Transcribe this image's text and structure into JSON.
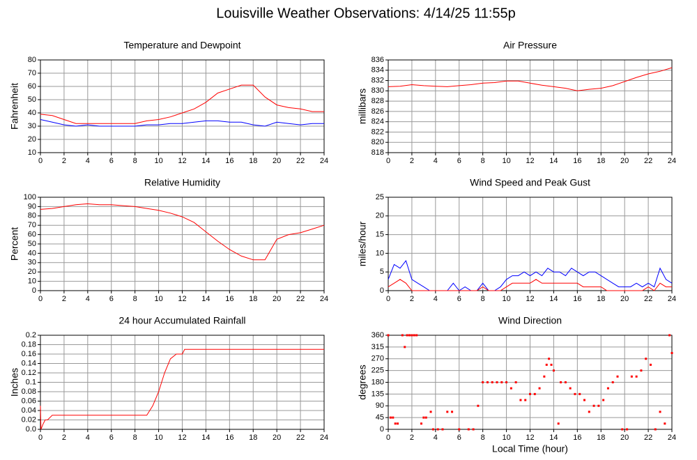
{
  "title": "Louisville Weather Observations: 4/14/25 11:55p",
  "chart_data": [
    {
      "type": "line",
      "title": "Temperature and Dewpoint",
      "ylabel": "Fahrenheit",
      "x": [
        0,
        1,
        2,
        3,
        4,
        5,
        6,
        7,
        8,
        9,
        10,
        11,
        12,
        13,
        14,
        15,
        16,
        17,
        18,
        19,
        20,
        21,
        22,
        23,
        24
      ],
      "series": [
        {
          "color": "#ff0000",
          "values": [
            39,
            38,
            35,
            32,
            32,
            32,
            32,
            32,
            32,
            34,
            35,
            37,
            40,
            43,
            48,
            55,
            58,
            61,
            61,
            52,
            46,
            44,
            43,
            41,
            41
          ]
        },
        {
          "color": "#0000ff",
          "values": [
            35,
            33,
            31,
            30,
            31,
            30,
            30,
            30,
            30,
            31,
            31,
            32,
            32,
            33,
            34,
            34,
            33,
            33,
            31,
            30,
            33,
            32,
            31,
            32,
            32
          ]
        }
      ],
      "xlim": [
        0,
        24
      ],
      "xticks": [
        0,
        2,
        4,
        6,
        8,
        10,
        12,
        14,
        16,
        18,
        20,
        22,
        24
      ],
      "ylim": [
        10,
        80
      ],
      "yticks": [
        10,
        20,
        30,
        40,
        50,
        60,
        70,
        80
      ],
      "grid": true
    },
    {
      "type": "line",
      "title": "Air Pressure",
      "ylabel": "millibars",
      "x": [
        0,
        1,
        2,
        3,
        4,
        5,
        6,
        7,
        8,
        9,
        10,
        11,
        12,
        13,
        14,
        15,
        16,
        17,
        18,
        19,
        20,
        21,
        22,
        23,
        24
      ],
      "series": [
        {
          "color": "#ff0000",
          "values": [
            830.8,
            830.9,
            831.2,
            831,
            830.9,
            830.8,
            831,
            831.2,
            831.5,
            831.6,
            831.9,
            831.9,
            831.5,
            831.1,
            830.8,
            830.5,
            830,
            830.3,
            830.5,
            831,
            831.8,
            832.6,
            833.3,
            833.8,
            834.5
          ]
        }
      ],
      "xlim": [
        0,
        24
      ],
      "xticks": [
        0,
        2,
        4,
        6,
        8,
        10,
        12,
        14,
        16,
        18,
        20,
        22,
        24
      ],
      "ylim": [
        818,
        836
      ],
      "yticks": [
        818,
        820,
        822,
        824,
        826,
        828,
        830,
        832,
        834,
        836
      ],
      "grid": true
    },
    {
      "type": "line",
      "title": "Relative Humidity",
      "ylabel": "Percent",
      "x": [
        0,
        1,
        2,
        3,
        4,
        5,
        6,
        7,
        8,
        9,
        10,
        11,
        12,
        13,
        14,
        15,
        16,
        17,
        18,
        19,
        20,
        21,
        22,
        23,
        24
      ],
      "series": [
        {
          "color": "#ff0000",
          "values": [
            87,
            88,
            90,
            92,
            93,
            92,
            92,
            91,
            90,
            88,
            86,
            83,
            79,
            73,
            63,
            53,
            44,
            37,
            33,
            33,
            55,
            60,
            62,
            66,
            70
          ]
        }
      ],
      "xlim": [
        0,
        24
      ],
      "xticks": [
        0,
        2,
        4,
        6,
        8,
        10,
        12,
        14,
        16,
        18,
        20,
        22,
        24
      ],
      "ylim": [
        0,
        100
      ],
      "yticks": [
        0,
        10,
        20,
        30,
        40,
        50,
        60,
        70,
        80,
        90,
        100
      ],
      "grid": true
    },
    {
      "type": "line",
      "title": "Wind Speed and Peak Gust",
      "ylabel": "miles/hour",
      "x": [
        0,
        0.5,
        1,
        1.5,
        2,
        2.5,
        3,
        3.5,
        4,
        4.5,
        5,
        5.5,
        6,
        6.5,
        7,
        7.5,
        8,
        8.5,
        9,
        9.5,
        10,
        10.5,
        11,
        11.5,
        12,
        12.5,
        13,
        13.5,
        14,
        14.5,
        15,
        15.5,
        16,
        16.5,
        17,
        17.5,
        18,
        18.5,
        19,
        19.5,
        20,
        20.5,
        21,
        21.5,
        22,
        22.5,
        23,
        23.5,
        24
      ],
      "series": [
        {
          "color": "#0000ff",
          "values": [
            3,
            7,
            6,
            8,
            3,
            2,
            1,
            0,
            0,
            0,
            0,
            2,
            0,
            1,
            0,
            0,
            2,
            0,
            0,
            1,
            3,
            4,
            4,
            5,
            4,
            5,
            4,
            6,
            5,
            5,
            4,
            6,
            5,
            4,
            5,
            5,
            4,
            3,
            2,
            1,
            1,
            1,
            2,
            1,
            2,
            1,
            6,
            3,
            2
          ]
        },
        {
          "color": "#ff0000",
          "values": [
            1,
            2,
            3,
            2,
            0,
            0,
            0,
            0,
            0,
            0,
            0,
            0,
            0,
            0,
            0,
            0,
            1,
            0,
            0,
            0,
            1,
            2,
            2,
            2,
            2,
            3,
            2,
            2,
            2,
            2,
            2,
            2,
            2,
            1,
            1,
            1,
            1,
            0,
            0,
            0,
            0,
            0,
            0,
            0,
            1,
            0,
            2,
            1,
            1
          ]
        }
      ],
      "xlim": [
        0,
        24
      ],
      "xticks": [
        0,
        2,
        4,
        6,
        8,
        10,
        12,
        14,
        16,
        18,
        20,
        22,
        24
      ],
      "ylim": [
        0,
        25
      ],
      "yticks": [
        0,
        5,
        10,
        15,
        20,
        25
      ],
      "grid": true
    },
    {
      "type": "line",
      "title": "24 hour Accumulated Rainfall",
      "ylabel": "Inches",
      "x": [
        0,
        0.05,
        0.2,
        0.4,
        0.6,
        1,
        1.2,
        9,
        9.5,
        10,
        10.5,
        11,
        11.5,
        12,
        12.2,
        24
      ],
      "series": [
        {
          "color": "#ff0000",
          "values": [
            0.05,
            0,
            0.01,
            0.02,
            0.02,
            0.03,
            0.03,
            0.03,
            0.05,
            0.08,
            0.12,
            0.15,
            0.16,
            0.16,
            0.17,
            0.17
          ]
        }
      ],
      "xlim": [
        0,
        24
      ],
      "xticks": [
        0,
        2,
        4,
        6,
        8,
        10,
        12,
        14,
        16,
        18,
        20,
        22,
        24
      ],
      "ylim": [
        0,
        0.2
      ],
      "yticks": [
        {
          "value": 0,
          "label": "0.0"
        },
        0.02,
        0.04,
        0.06,
        0.08,
        0.1,
        0.12,
        0.14,
        0.16,
        0.18,
        0.2
      ],
      "grid": true
    },
    {
      "type": "scatter",
      "title": "Wind Direction",
      "ylabel": "degrees",
      "xlabel": "Local Time (hour)",
      "x": [
        0,
        0.2,
        0.4,
        0.6,
        0.8,
        1.2,
        1.4,
        1.6,
        1.8,
        2.0,
        2.2,
        2.4,
        2.8,
        3.0,
        3.2,
        3.6,
        3.8,
        4.2,
        4.6,
        5.0,
        5.4,
        6.0,
        6.8,
        7.2,
        7.6,
        8.0,
        8.4,
        8.8,
        9.2,
        9.6,
        10.0,
        10.4,
        10.8,
        11.2,
        11.6,
        12.0,
        12.4,
        12.8,
        13.2,
        13.4,
        13.6,
        13.8,
        14.0,
        14.4,
        14.6,
        15.0,
        15.4,
        15.8,
        16.2,
        16.6,
        17.0,
        17.4,
        17.8,
        18.2,
        18.6,
        19.0,
        19.4,
        19.8,
        20.2,
        20.6,
        21.0,
        21.4,
        21.8,
        22.2,
        22.6,
        23.0,
        23.4,
        23.8,
        24.0
      ],
      "color": "#ff0000",
      "values": [
        360,
        45,
        45,
        22,
        22,
        360,
        315,
        360,
        360,
        360,
        360,
        360,
        22,
        45,
        45,
        67,
        0,
        0,
        0,
        67,
        67,
        0,
        0,
        0,
        90,
        180,
        180,
        180,
        180,
        180,
        180,
        157,
        180,
        112,
        112,
        135,
        135,
        157,
        202,
        247,
        270,
        247,
        225,
        22,
        180,
        180,
        157,
        135,
        135,
        112,
        67,
        90,
        90,
        112,
        157,
        180,
        202,
        0,
        0,
        202,
        202,
        225,
        270,
        247,
        0,
        67,
        22,
        360,
        292
      ],
      "xlim": [
        0,
        24
      ],
      "xticks": [
        0,
        2,
        4,
        6,
        8,
        10,
        12,
        14,
        16,
        18,
        20,
        22,
        24
      ],
      "ylim": [
        0,
        360
      ],
      "yticks": [
        0,
        45,
        90,
        135,
        180,
        225,
        270,
        315,
        360
      ],
      "grid": true
    }
  ]
}
